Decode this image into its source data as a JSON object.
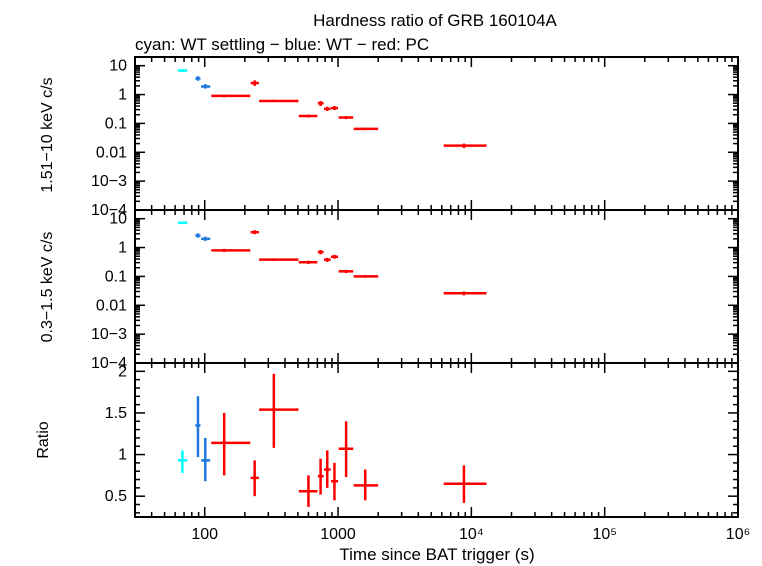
{
  "title": "Hardness ratio of GRB 160104A",
  "subtitle": "cyan: WT settling − blue: WT − red: PC",
  "colors": {
    "cyan": "#00ffff",
    "blue": "#1e78dc",
    "red": "#ff0000"
  },
  "chart_data": [
    {
      "type": "scatter",
      "panel": "hard",
      "ylabel": "1.51−10 keV c/s",
      "yscale": "log",
      "ylim": [
        0.0001,
        20
      ],
      "y_ticks": [
        "10",
        "1",
        "0.1",
        "0.01",
        "10−3",
        "10−4"
      ],
      "points": [
        {
          "mode": "WT settling",
          "x": 68,
          "xlo": 63,
          "xhi": 74,
          "y": 6.8,
          "ylo": 6.0,
          "yhi": 7.6
        },
        {
          "mode": "WT",
          "x": 89,
          "xlo": 85,
          "xhi": 93,
          "y": 3.6,
          "ylo": 3.0,
          "yhi": 4.3
        },
        {
          "mode": "WT",
          "x": 101,
          "xlo": 94,
          "xhi": 110,
          "y": 1.9,
          "ylo": 1.6,
          "yhi": 2.3
        },
        {
          "mode": "PC",
          "x": 140,
          "xlo": 112,
          "xhi": 220,
          "y": 0.9,
          "ylo": 0.8,
          "yhi": 1.0
        },
        {
          "mode": "PC",
          "x": 237,
          "xlo": 221,
          "xhi": 255,
          "y": 2.5,
          "ylo": 2.0,
          "yhi": 3.1
        },
        {
          "mode": "PC",
          "x": 330,
          "xlo": 256,
          "xhi": 505,
          "y": 0.6,
          "ylo": 0.55,
          "yhi": 0.66
        },
        {
          "mode": "PC",
          "x": 600,
          "xlo": 508,
          "xhi": 700,
          "y": 0.18,
          "ylo": 0.16,
          "yhi": 0.2
        },
        {
          "mode": "PC",
          "x": 740,
          "xlo": 705,
          "xhi": 780,
          "y": 0.5,
          "ylo": 0.4,
          "yhi": 0.6
        },
        {
          "mode": "PC",
          "x": 830,
          "xlo": 785,
          "xhi": 880,
          "y": 0.32,
          "ylo": 0.27,
          "yhi": 0.38
        },
        {
          "mode": "PC",
          "x": 940,
          "xlo": 885,
          "xhi": 1000,
          "y": 0.34,
          "ylo": 0.29,
          "yhi": 0.4
        },
        {
          "mode": "PC",
          "x": 1150,
          "xlo": 1010,
          "xhi": 1300,
          "y": 0.16,
          "ylo": 0.14,
          "yhi": 0.18
        },
        {
          "mode": "PC",
          "x": 1600,
          "xlo": 1310,
          "xhi": 2000,
          "y": 0.065,
          "ylo": 0.058,
          "yhi": 0.072
        },
        {
          "mode": "PC",
          "x": 8800,
          "xlo": 6200,
          "xhi": 13000,
          "y": 0.017,
          "ylo": 0.014,
          "yhi": 0.02
        }
      ]
    },
    {
      "type": "scatter",
      "panel": "soft",
      "ylabel": "0.3−1.5 keV c/s",
      "yscale": "log",
      "ylim": [
        0.0001,
        20
      ],
      "y_ticks": [
        "10",
        "1",
        "0.1",
        "0.01",
        "10−3",
        "10−4"
      ],
      "points": [
        {
          "mode": "WT settling",
          "x": 68,
          "xlo": 63,
          "xhi": 74,
          "y": 7.2,
          "ylo": 6.5,
          "yhi": 8.0
        },
        {
          "mode": "WT",
          "x": 89,
          "xlo": 85,
          "xhi": 93,
          "y": 2.6,
          "ylo": 2.2,
          "yhi": 3.1
        },
        {
          "mode": "WT",
          "x": 101,
          "xlo": 94,
          "xhi": 110,
          "y": 2.0,
          "ylo": 1.7,
          "yhi": 2.4
        },
        {
          "mode": "PC",
          "x": 140,
          "xlo": 112,
          "xhi": 220,
          "y": 0.8,
          "ylo": 0.7,
          "yhi": 0.9
        },
        {
          "mode": "PC",
          "x": 237,
          "xlo": 221,
          "xhi": 255,
          "y": 3.4,
          "ylo": 2.9,
          "yhi": 4.0
        },
        {
          "mode": "PC",
          "x": 330,
          "xlo": 256,
          "xhi": 505,
          "y": 0.38,
          "ylo": 0.34,
          "yhi": 0.42
        },
        {
          "mode": "PC",
          "x": 600,
          "xlo": 508,
          "xhi": 700,
          "y": 0.31,
          "ylo": 0.27,
          "yhi": 0.35
        },
        {
          "mode": "PC",
          "x": 740,
          "xlo": 705,
          "xhi": 780,
          "y": 0.7,
          "ylo": 0.58,
          "yhi": 0.82
        },
        {
          "mode": "PC",
          "x": 830,
          "xlo": 785,
          "xhi": 880,
          "y": 0.38,
          "ylo": 0.32,
          "yhi": 0.44
        },
        {
          "mode": "PC",
          "x": 940,
          "xlo": 885,
          "xhi": 1000,
          "y": 0.48,
          "ylo": 0.41,
          "yhi": 0.56
        },
        {
          "mode": "PC",
          "x": 1150,
          "xlo": 1010,
          "xhi": 1300,
          "y": 0.15,
          "ylo": 0.13,
          "yhi": 0.17
        },
        {
          "mode": "PC",
          "x": 1600,
          "xlo": 1310,
          "xhi": 2000,
          "y": 0.1,
          "ylo": 0.09,
          "yhi": 0.11
        },
        {
          "mode": "PC",
          "x": 8800,
          "xlo": 6200,
          "xhi": 13000,
          "y": 0.026,
          "ylo": 0.022,
          "yhi": 0.03
        }
      ]
    },
    {
      "type": "scatter",
      "panel": "ratio",
      "ylabel": "Ratio",
      "xlabel": "Time since BAT trigger (s)",
      "xscale": "log",
      "xlim": [
        30,
        1000000
      ],
      "x_ticks": [
        "100",
        "1000",
        "10⁴",
        "10⁵",
        "10⁶"
      ],
      "yscale": "linear",
      "ylim": [
        0.25,
        2.1
      ],
      "y_ticks": [
        "2",
        "1.5",
        "1",
        "0.5"
      ],
      "points": [
        {
          "mode": "WT settling",
          "x": 68,
          "xlo": 63,
          "xhi": 74,
          "y": 0.93,
          "ylo": 0.78,
          "yhi": 1.05
        },
        {
          "mode": "WT",
          "x": 89,
          "xlo": 85,
          "xhi": 93,
          "y": 1.35,
          "ylo": 0.97,
          "yhi": 1.7
        },
        {
          "mode": "WT",
          "x": 101,
          "xlo": 94,
          "xhi": 110,
          "y": 0.93,
          "ylo": 0.68,
          "yhi": 1.2
        },
        {
          "mode": "PC",
          "x": 140,
          "xlo": 112,
          "xhi": 220,
          "y": 1.14,
          "ylo": 0.75,
          "yhi": 1.5
        },
        {
          "mode": "PC",
          "x": 237,
          "xlo": 221,
          "xhi": 255,
          "y": 0.72,
          "ylo": 0.5,
          "yhi": 0.93
        },
        {
          "mode": "PC",
          "x": 330,
          "xlo": 256,
          "xhi": 505,
          "y": 1.54,
          "ylo": 1.08,
          "yhi": 1.97
        },
        {
          "mode": "PC",
          "x": 600,
          "xlo": 508,
          "xhi": 700,
          "y": 0.56,
          "ylo": 0.37,
          "yhi": 0.75
        },
        {
          "mode": "PC",
          "x": 740,
          "xlo": 705,
          "xhi": 780,
          "y": 0.74,
          "ylo": 0.52,
          "yhi": 0.95
        },
        {
          "mode": "PC",
          "x": 830,
          "xlo": 785,
          "xhi": 880,
          "y": 0.82,
          "ylo": 0.6,
          "yhi": 1.05
        },
        {
          "mode": "PC",
          "x": 940,
          "xlo": 885,
          "xhi": 1000,
          "y": 0.68,
          "ylo": 0.45,
          "yhi": 0.9
        },
        {
          "mode": "PC",
          "x": 1150,
          "xlo": 1010,
          "xhi": 1300,
          "y": 1.07,
          "ylo": 0.73,
          "yhi": 1.4
        },
        {
          "mode": "PC",
          "x": 1600,
          "xlo": 1310,
          "xhi": 2000,
          "y": 0.63,
          "ylo": 0.45,
          "yhi": 0.82
        },
        {
          "mode": "PC",
          "x": 8800,
          "xlo": 6200,
          "xhi": 13000,
          "y": 0.65,
          "ylo": 0.42,
          "yhi": 0.87
        }
      ]
    }
  ]
}
